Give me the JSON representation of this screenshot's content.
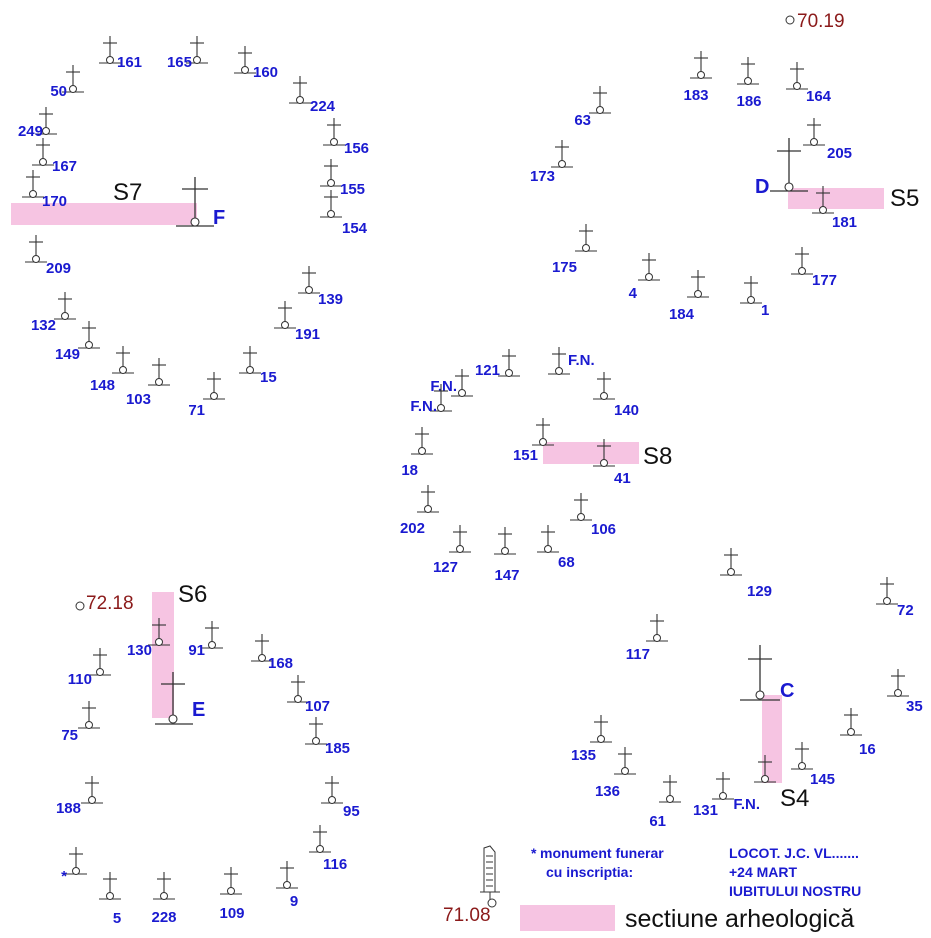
{
  "colors": {
    "grave_number": "#1a1ad0",
    "elevation": "#8b1a1a",
    "section_fill": "#f6c4e2",
    "cross_stroke": "#333333",
    "section_label": "#111111"
  },
  "elevations": [
    {
      "id": "e1",
      "value": "70.19"
    },
    {
      "id": "e2",
      "value": "72.18"
    },
    {
      "id": "e3",
      "value": "71.08"
    }
  ],
  "sections": [
    {
      "id": "S7",
      "label": "S7"
    },
    {
      "id": "S5",
      "label": "S5"
    },
    {
      "id": "S8",
      "label": "S8"
    },
    {
      "id": "S6",
      "label": "S6"
    },
    {
      "id": "S4",
      "label": "S4"
    }
  ],
  "large_crosses": [
    {
      "id": "F",
      "label": "F"
    },
    {
      "id": "D",
      "label": "D"
    },
    {
      "id": "E",
      "label": "E"
    },
    {
      "id": "C",
      "label": "C"
    }
  ],
  "graves": [
    {
      "label": "161"
    },
    {
      "label": "165"
    },
    {
      "label": "160"
    },
    {
      "label": "50"
    },
    {
      "label": "224"
    },
    {
      "label": "249"
    },
    {
      "label": "156"
    },
    {
      "label": "167"
    },
    {
      "label": "155"
    },
    {
      "label": "170"
    },
    {
      "label": "154"
    },
    {
      "label": "209"
    },
    {
      "label": "139"
    },
    {
      "label": "132"
    },
    {
      "label": "191"
    },
    {
      "label": "149"
    },
    {
      "label": "148"
    },
    {
      "label": "103"
    },
    {
      "label": "15"
    },
    {
      "label": "71"
    },
    {
      "label": "183"
    },
    {
      "label": "186"
    },
    {
      "label": "164"
    },
    {
      "label": "63"
    },
    {
      "label": "205"
    },
    {
      "label": "173"
    },
    {
      "label": "181"
    },
    {
      "label": "175"
    },
    {
      "label": "4"
    },
    {
      "label": "184"
    },
    {
      "label": "1"
    },
    {
      "label": "177"
    },
    {
      "label": "121"
    },
    {
      "label": "F.N."
    },
    {
      "label": "F.N."
    },
    {
      "label": "F.N."
    },
    {
      "label": "140"
    },
    {
      "label": "151"
    },
    {
      "label": "41"
    },
    {
      "label": "18"
    },
    {
      "label": "202"
    },
    {
      "label": "106"
    },
    {
      "label": "127"
    },
    {
      "label": "147"
    },
    {
      "label": "68"
    },
    {
      "label": "129"
    },
    {
      "label": "72"
    },
    {
      "label": "117"
    },
    {
      "label": "35"
    },
    {
      "label": "16"
    },
    {
      "label": "135"
    },
    {
      "label": "145"
    },
    {
      "label": "136"
    },
    {
      "label": "61"
    },
    {
      "label": "131"
    },
    {
      "label": "F.N."
    },
    {
      "label": "130"
    },
    {
      "label": "91"
    },
    {
      "label": "110"
    },
    {
      "label": "168"
    },
    {
      "label": "107"
    },
    {
      "label": "75"
    },
    {
      "label": "185"
    },
    {
      "label": "188"
    },
    {
      "label": "95"
    },
    {
      "label": "116"
    },
    {
      "label": "*"
    },
    {
      "label": "5"
    },
    {
      "label": "228"
    },
    {
      "label": "109"
    },
    {
      "label": "9"
    }
  ],
  "legend": {
    "asterisk": "*",
    "monument_line1": "monument funerar",
    "monument_line2": "cu inscriptia:",
    "inscription": [
      "LOCOT. J.C. VL.......",
      "+24 MART",
      "IUBITULUI NOSTRU"
    ],
    "section_text": "sectiune arheologică"
  }
}
